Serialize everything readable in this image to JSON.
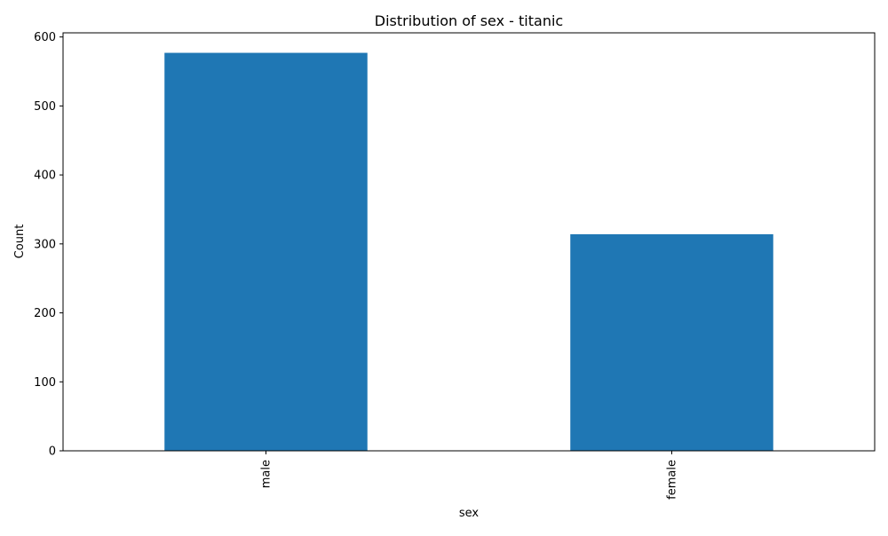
{
  "chart_data": {
    "type": "bar",
    "title": "Distribution of sex - titanic",
    "xlabel": "sex",
    "ylabel": "Count",
    "categories": [
      "male",
      "female"
    ],
    "values": [
      577,
      314
    ],
    "ylim": [
      0,
      606
    ],
    "yticks": [
      0,
      100,
      200,
      300,
      400,
      500,
      600
    ],
    "ytick_labels": [
      "0",
      "100",
      "200",
      "300",
      "400",
      "500",
      "600"
    ],
    "bar_color": "#1f77b4",
    "grid": false,
    "legend": false
  }
}
